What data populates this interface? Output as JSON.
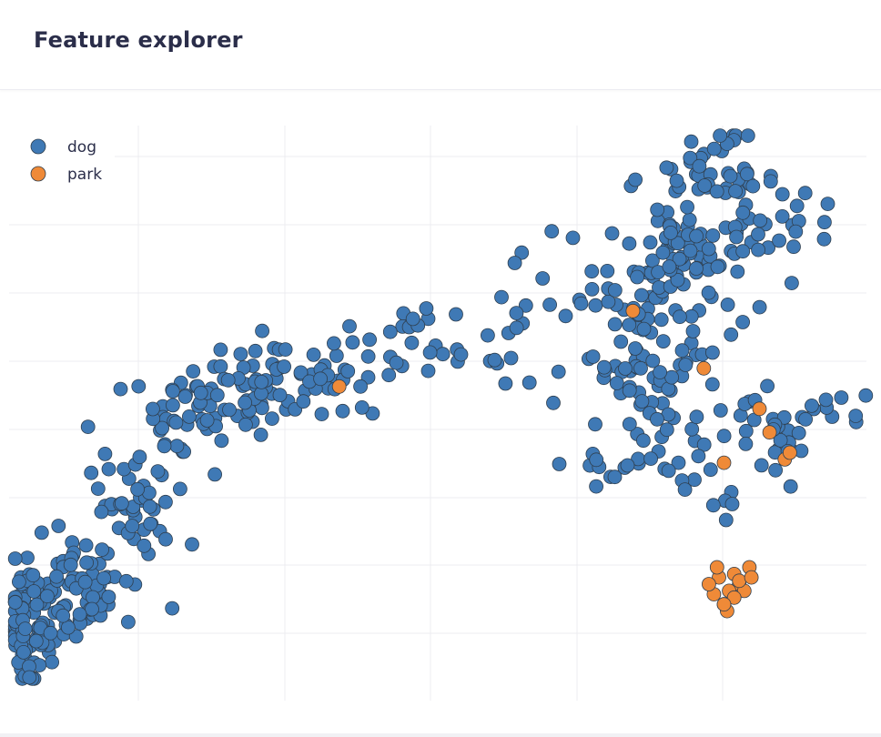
{
  "header": {
    "title": "Feature explorer"
  },
  "colors": {
    "dog": "#3f79b5",
    "park": "#ef8a38",
    "grid": "#ececf0",
    "marker_edge": "#2f3f4f"
  },
  "chart_data": {
    "type": "scatter",
    "title": "",
    "xlabel": "",
    "ylabel": "",
    "xlim": [
      -3.7,
      5.0
    ],
    "ylim": [
      -4.0,
      4.5
    ],
    "grid": true,
    "legend": {
      "placement": "top-left",
      "entries": [
        "dog",
        "park"
      ]
    },
    "series": [
      {
        "name": "dog",
        "color": "#3f79b5",
        "clusters": [
          {
            "cx": -3.4,
            "cy": -2.9,
            "sx": 0.17,
            "sy": 0.48,
            "n": 95
          },
          {
            "cx": -2.9,
            "cy": -2.2,
            "sx": 0.22,
            "sy": 0.45,
            "n": 60
          },
          {
            "cx": -2.4,
            "cy": -1.2,
            "sx": 0.22,
            "sy": 0.4,
            "n": 45
          },
          {
            "cx": -1.9,
            "cy": 0.1,
            "sx": 0.28,
            "sy": 0.38,
            "n": 45
          },
          {
            "cx": -1.2,
            "cy": 0.6,
            "sx": 0.28,
            "sy": 0.35,
            "n": 45
          },
          {
            "cx": -0.4,
            "cy": 0.8,
            "sx": 0.3,
            "sy": 0.3,
            "n": 35
          },
          {
            "cx": 0.4,
            "cy": 1.3,
            "sx": 0.3,
            "sy": 0.3,
            "n": 20
          },
          {
            "cx": 1.3,
            "cy": 1.4,
            "sx": 0.3,
            "sy": 0.5,
            "n": 20
          },
          {
            "cx": 2.6,
            "cy": 1.8,
            "sx": 0.35,
            "sy": 0.6,
            "n": 60
          },
          {
            "cx": 3.1,
            "cy": 2.6,
            "sx": 0.25,
            "sy": 0.45,
            "n": 55
          },
          {
            "cx": 3.3,
            "cy": 3.7,
            "sx": 0.25,
            "sy": 0.4,
            "n": 45
          },
          {
            "cx": 3.9,
            "cy": 3.0,
            "sx": 0.3,
            "sy": 0.45,
            "n": 30
          },
          {
            "cx": 2.7,
            "cy": 0.8,
            "sx": 0.35,
            "sy": 0.3,
            "n": 35
          },
          {
            "cx": 2.8,
            "cy": -0.3,
            "sx": 0.4,
            "sy": 0.35,
            "n": 40
          },
          {
            "cx": 4.0,
            "cy": -0.1,
            "sx": 0.3,
            "sy": 0.3,
            "n": 30
          },
          {
            "cx": 4.6,
            "cy": 0.3,
            "sx": 0.2,
            "sy": 0.12,
            "n": 8
          },
          {
            "cx": 3.4,
            "cy": -1.1,
            "sx": 0.1,
            "sy": 0.15,
            "n": 4
          }
        ]
      },
      {
        "name": "park",
        "color": "#ef8a38",
        "points": [
          [
            2.55,
            1.75
          ],
          [
            3.25,
            0.9
          ],
          [
            -0.35,
            0.63
          ],
          [
            3.8,
            0.3
          ],
          [
            3.9,
            -0.05
          ],
          [
            3.45,
            -0.5
          ],
          [
            4.05,
            -0.45
          ],
          [
            4.1,
            -0.35
          ],
          [
            3.4,
            -2.2
          ],
          [
            3.55,
            -2.15
          ],
          [
            3.7,
            -2.05
          ],
          [
            3.6,
            -2.3
          ],
          [
            3.5,
            -2.4
          ],
          [
            3.35,
            -2.45
          ],
          [
            3.45,
            -2.6
          ],
          [
            3.65,
            -2.4
          ],
          [
            3.3,
            -2.3
          ],
          [
            3.55,
            -2.5
          ],
          [
            3.6,
            -2.25
          ],
          [
            3.38,
            -2.05
          ],
          [
            3.48,
            -2.7
          ],
          [
            3.72,
            -2.2
          ],
          [
            3.45,
            -2.6
          ]
        ]
      }
    ]
  }
}
